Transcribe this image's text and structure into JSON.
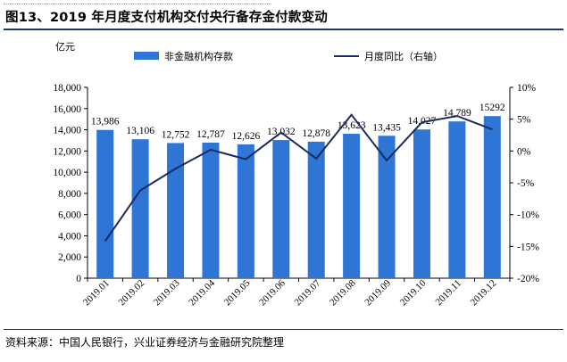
{
  "figure": {
    "title": "图13、2019 年月度支付机构交付央行备存金付款变动",
    "source": "资料来源：中国人民银行，兴业证券经济与金融研究院整理"
  },
  "chart_data": {
    "type": "bar",
    "title": "",
    "ylabel": "亿元",
    "ylabel_right": "",
    "categories": [
      "2019.01",
      "2019.02",
      "2019.03",
      "2019.04",
      "2019.05",
      "2019.06",
      "2019.07",
      "2019.08",
      "2019.09",
      "2019.10",
      "2019.11",
      "2019.12"
    ],
    "ylim": [
      0,
      18000
    ],
    "yticks": [
      0,
      2000,
      4000,
      6000,
      8000,
      10000,
      12000,
      14000,
      16000,
      18000
    ],
    "ytick_labels": [
      "0",
      "2,000",
      "4,000",
      "6,000",
      "8,000",
      "10,000",
      "12,000",
      "14,000",
      "16,000",
      "18,000"
    ],
    "ylim_right": [
      -20,
      10
    ],
    "yticks_right": [
      -20,
      -15,
      -10,
      -5,
      0,
      5,
      10
    ],
    "ytick_labels_right": [
      "-20%",
      "-15%",
      "-10%",
      "-5%",
      "0%",
      "5%",
      "10%"
    ],
    "legend_position": "top",
    "grid": false,
    "series": [
      {
        "name": "非金融机构存款",
        "kind": "bar",
        "axis": "left",
        "color": "#2e75d6",
        "values": [
          13986,
          13106,
          12752,
          12787,
          12626,
          13032,
          12878,
          13623,
          13435,
          14027,
          14789,
          15292
        ],
        "labels": [
          "13,986",
          "13,106",
          "12,752",
          "12,787",
          "12,626",
          "13,032",
          "12,878",
          "13,623",
          "13,435",
          "14,027",
          "14,789",
          "15292"
        ]
      },
      {
        "name": "月度同比（右轴）",
        "kind": "line",
        "axis": "right",
        "color": "#1a2a5e",
        "values": [
          -14.2,
          -6.2,
          -2.8,
          0.2,
          -1.3,
          2.9,
          -1.2,
          5.7,
          -1.5,
          4.5,
          5.5,
          3.4
        ]
      }
    ]
  }
}
